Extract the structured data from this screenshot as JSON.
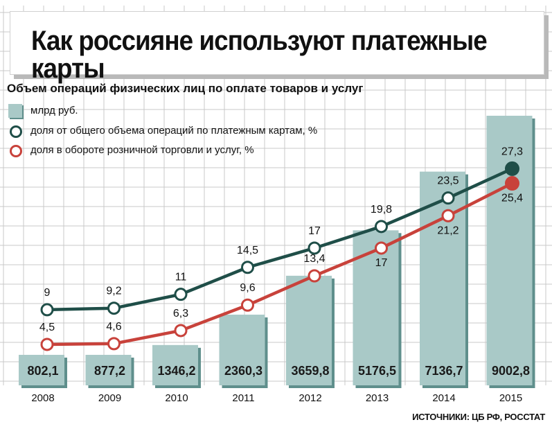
{
  "title": "Как россияне используют платежные карты",
  "subtitle": "Объем операций физических лиц по оплате товаров и услуг",
  "legend": {
    "bars": "млрд руб.",
    "share_cards": "доля от общего объема операций по платежным картам, %",
    "share_retail": "доля в обороте розничной торговли и услуг, %"
  },
  "source": "ИСТОЧНИКИ: ЦБ РФ, РОССТАТ",
  "colors": {
    "bar": "#a9c9c7",
    "bar_dark": "#5f8f8c",
    "line_cards": "#1f4e48",
    "line_retail": "#c8423b",
    "grid": "#c9c9c9"
  },
  "chart_data": {
    "type": "bar",
    "categories": [
      "2008",
      "2009",
      "2010",
      "2011",
      "2012",
      "2013",
      "2014",
      "2015"
    ],
    "bar_values_labels": [
      "802,1",
      "877,2",
      "1346,2",
      "2360,3",
      "3659,8",
      "5176,5",
      "7136,7",
      "9002,8"
    ],
    "series": [
      {
        "name": "млрд руб.",
        "type": "bar",
        "values": [
          802.1,
          877.2,
          1346.2,
          2360.3,
          3659.8,
          5176.5,
          7136.7,
          9002.8
        ]
      },
      {
        "name": "доля от общего объема операций по платежным картам, %",
        "type": "line",
        "values": [
          9,
          9.2,
          11,
          14.5,
          17,
          19.8,
          23.5,
          27.3
        ],
        "labels": [
          "9",
          "9,2",
          "11",
          "14,5",
          "17",
          "19,8",
          "23,5",
          "27,3"
        ]
      },
      {
        "name": "доля в обороте розничной торговли и услуг, %",
        "type": "line",
        "values": [
          4.5,
          4.6,
          6.3,
          9.6,
          13.4,
          17,
          21.2,
          25.4
        ],
        "labels": [
          "4,5",
          "4,6",
          "6,3",
          "9,6",
          "13,4",
          "17",
          "21,2",
          "25,4"
        ]
      }
    ],
    "grid": true,
    "legend_position": "top-left"
  }
}
